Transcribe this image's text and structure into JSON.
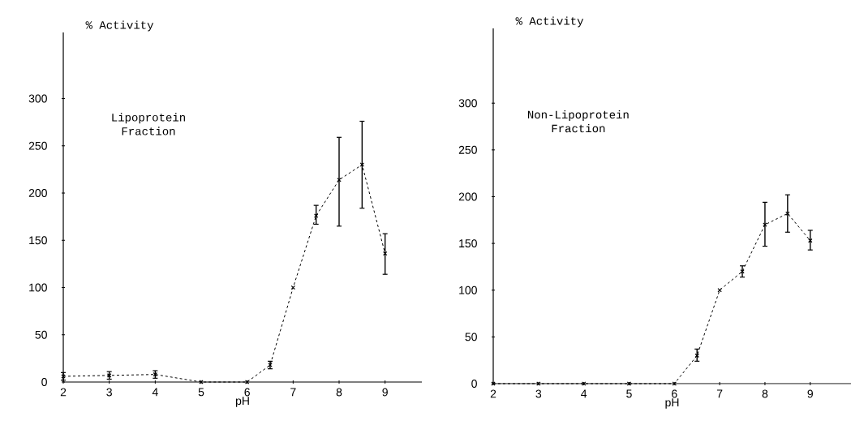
{
  "chart_data": [
    {
      "type": "line",
      "annotations": [
        "Lipoprotein Fraction"
      ],
      "xlabel": "pH",
      "ylabel": "% Activity",
      "x": [
        2,
        3,
        4,
        5,
        6,
        6.5,
        7,
        7.5,
        8,
        8.5,
        9
      ],
      "values": [
        6,
        7,
        8,
        0,
        0,
        18,
        100,
        176,
        214,
        230,
        136
      ],
      "errors": [
        [
          2,
          10
        ],
        [
          3,
          11
        ],
        [
          4,
          12
        ],
        null,
        null,
        [
          14,
          22
        ],
        null,
        [
          167,
          187
        ],
        [
          165,
          259
        ],
        [
          184,
          276
        ],
        [
          114,
          157
        ]
      ],
      "xlim": [
        2,
        9.8
      ],
      "ylim": [
        0,
        370
      ],
      "xticks": [
        2,
        3,
        4,
        5,
        6,
        7,
        8,
        9
      ],
      "yticks": [
        0,
        50,
        100,
        150,
        200,
        250,
        300
      ],
      "marker": "cross",
      "line_style": "dashed"
    },
    {
      "type": "line",
      "annotations": [
        "Non-Lipoprotein Fraction"
      ],
      "xlabel": "pH",
      "ylabel": "% Activity",
      "x": [
        2,
        3,
        4,
        5,
        6,
        6.5,
        7,
        7.5,
        8,
        8.5,
        9
      ],
      "values": [
        0,
        0,
        0,
        0,
        0,
        30,
        100,
        120,
        170,
        182,
        153
      ],
      "errors": [
        null,
        null,
        null,
        null,
        null,
        [
          24,
          37
        ],
        null,
        [
          114,
          126
        ],
        [
          147,
          194
        ],
        [
          162,
          202
        ],
        [
          143,
          164
        ]
      ],
      "xlim": [
        2,
        9.9
      ],
      "ylim": [
        0,
        380
      ],
      "xticks": [
        2,
        3,
        4,
        5,
        6,
        7,
        8,
        9
      ],
      "yticks": [
        0,
        50,
        100,
        150,
        200,
        250,
        300
      ],
      "marker": "cross",
      "line_style": "dashed"
    }
  ]
}
